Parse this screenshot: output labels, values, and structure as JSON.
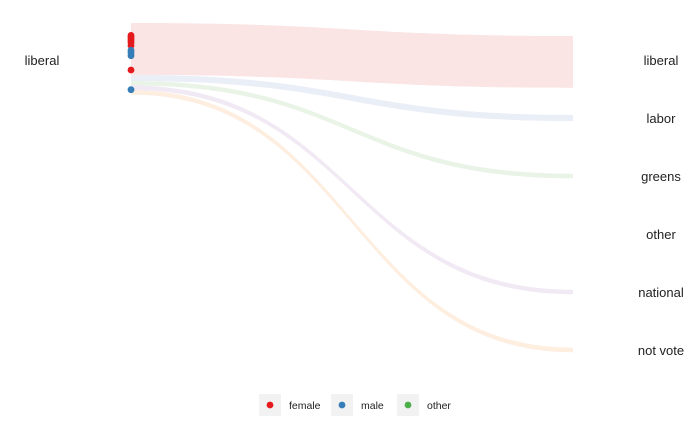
{
  "chart_data": {
    "type": "sankey",
    "source_node": "liberal",
    "target_nodes": [
      "liberal",
      "labor",
      "greens",
      "other",
      "national",
      "not vote"
    ],
    "flows": [
      {
        "from": "liberal",
        "to": "liberal",
        "value": 17,
        "color": "#fbe4e4"
      },
      {
        "from": "liberal",
        "to": "labor",
        "value": 2,
        "color": "#e9eef7"
      },
      {
        "from": "liberal",
        "to": "greens",
        "value": 1.5,
        "color": "#e9f4e7"
      },
      {
        "from": "liberal",
        "to": "other",
        "value": 0,
        "color": "#ffffff"
      },
      {
        "from": "liberal",
        "to": "national",
        "value": 1.5,
        "color": "#f1e9f3"
      },
      {
        "from": "liberal",
        "to": "not vote",
        "value": 1.5,
        "color": "#fdeee0"
      }
    ],
    "points": [
      {
        "group": "female",
        "pos": 0.04
      },
      {
        "group": "female",
        "pos": 0.07
      },
      {
        "group": "female",
        "pos": 0.1
      },
      {
        "group": "female",
        "pos": 0.13
      },
      {
        "group": "female",
        "pos": 0.16
      },
      {
        "group": "female",
        "pos": 0.21
      },
      {
        "group": "male",
        "pos": 0.29
      },
      {
        "group": "male",
        "pos": 0.33
      },
      {
        "group": "male",
        "pos": 0.38
      },
      {
        "group": "female",
        "pos": 0.62
      },
      {
        "group": "male",
        "pos": 0.95
      }
    ],
    "legend": {
      "position": "bottom",
      "items": [
        {
          "label": "female",
          "color": "#e41a1c"
        },
        {
          "label": "male",
          "color": "#377eb8"
        },
        {
          "label": "other",
          "color": "#4daf4a"
        }
      ]
    }
  }
}
